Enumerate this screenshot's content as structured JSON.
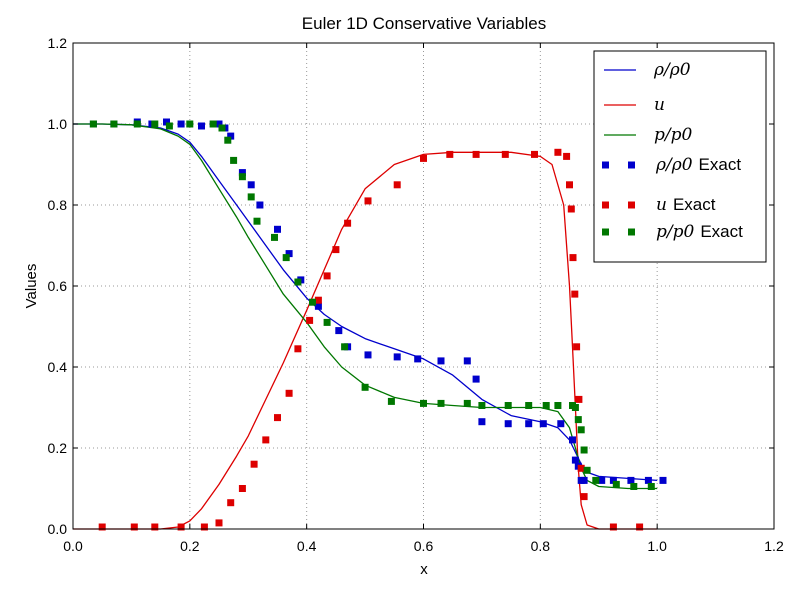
{
  "chart_data": {
    "type": "line",
    "title": "Euler 1D Conservative Variables",
    "xlabel": "x",
    "ylabel": "Values",
    "xlim": [
      0.0,
      1.2
    ],
    "ylim": [
      0.0,
      1.2
    ],
    "xticks": [
      "0.0",
      "0.2",
      "0.4",
      "0.6",
      "0.8",
      "1.0",
      "1.2"
    ],
    "yticks": [
      "0.0",
      "0.2",
      "0.4",
      "0.6",
      "0.8",
      "1.0",
      "1.2"
    ],
    "grid": true,
    "legend_position": "top-right",
    "series": [
      {
        "name": "ρ/ρ0",
        "kind": "line",
        "color": "#0000cc",
        "x": [
          0.0,
          0.05,
          0.1,
          0.15,
          0.18,
          0.2,
          0.22,
          0.25,
          0.28,
          0.3,
          0.33,
          0.36,
          0.4,
          0.43,
          0.46,
          0.5,
          0.55,
          0.6,
          0.65,
          0.7,
          0.75,
          0.8,
          0.83,
          0.85,
          0.86,
          0.87,
          0.88,
          0.9,
          0.95,
          1.0
        ],
        "y": [
          1.0,
          1.0,
          0.998,
          0.99,
          0.975,
          0.955,
          0.92,
          0.86,
          0.8,
          0.76,
          0.7,
          0.64,
          0.57,
          0.53,
          0.5,
          0.47,
          0.445,
          0.42,
          0.38,
          0.32,
          0.28,
          0.265,
          0.25,
          0.22,
          0.19,
          0.16,
          0.14,
          0.13,
          0.125,
          0.12
        ]
      },
      {
        "name": "u",
        "kind": "line",
        "color": "#dd0000",
        "x": [
          0.0,
          0.1,
          0.15,
          0.18,
          0.2,
          0.22,
          0.25,
          0.28,
          0.3,
          0.33,
          0.36,
          0.4,
          0.43,
          0.46,
          0.5,
          0.55,
          0.6,
          0.65,
          0.7,
          0.75,
          0.8,
          0.82,
          0.84,
          0.85,
          0.855,
          0.86,
          0.865,
          0.87,
          0.88,
          0.9,
          0.95,
          1.0
        ],
        "y": [
          0.0,
          0.0,
          0.0,
          0.005,
          0.02,
          0.05,
          0.11,
          0.18,
          0.23,
          0.32,
          0.41,
          0.54,
          0.64,
          0.74,
          0.84,
          0.9,
          0.925,
          0.93,
          0.93,
          0.93,
          0.92,
          0.9,
          0.8,
          0.6,
          0.45,
          0.3,
          0.15,
          0.06,
          0.01,
          0.0,
          0.0,
          0.0
        ]
      },
      {
        "name": "p/p0",
        "kind": "line",
        "color": "#007700",
        "x": [
          0.0,
          0.05,
          0.1,
          0.15,
          0.18,
          0.2,
          0.22,
          0.25,
          0.28,
          0.3,
          0.33,
          0.36,
          0.4,
          0.43,
          0.46,
          0.5,
          0.55,
          0.6,
          0.65,
          0.7,
          0.75,
          0.8,
          0.83,
          0.85,
          0.86,
          0.87,
          0.88,
          0.9,
          0.95,
          1.0
        ],
        "y": [
          1.0,
          1.0,
          0.998,
          0.988,
          0.97,
          0.95,
          0.91,
          0.84,
          0.77,
          0.72,
          0.65,
          0.58,
          0.51,
          0.45,
          0.4,
          0.355,
          0.325,
          0.31,
          0.305,
          0.3,
          0.3,
          0.3,
          0.29,
          0.25,
          0.2,
          0.15,
          0.12,
          0.105,
          0.1,
          0.1
        ]
      },
      {
        "name": "ρ/ρ0 Exact",
        "kind": "scatter",
        "color": "#0000cc",
        "x": [
          0.035,
          0.07,
          0.11,
          0.135,
          0.16,
          0.185,
          0.22,
          0.24,
          0.25,
          0.26,
          0.27,
          0.29,
          0.305,
          0.32,
          0.35,
          0.37,
          0.39,
          0.42,
          0.455,
          0.47,
          0.505,
          0.555,
          0.59,
          0.63,
          0.675,
          0.69,
          0.7,
          0.745,
          0.78,
          0.805,
          0.835,
          0.855,
          0.86,
          0.865,
          0.87,
          0.875,
          0.905,
          0.925,
          0.955,
          0.985,
          1.01
        ],
        "y": [
          1.0,
          1.0,
          1.005,
          1.0,
          1.005,
          1.0,
          0.995,
          1.0,
          1.0,
          0.99,
          0.97,
          0.88,
          0.85,
          0.8,
          0.74,
          0.68,
          0.615,
          0.55,
          0.49,
          0.45,
          0.43,
          0.425,
          0.42,
          0.415,
          0.415,
          0.37,
          0.265,
          0.26,
          0.26,
          0.26,
          0.26,
          0.22,
          0.17,
          0.155,
          0.12,
          0.12,
          0.12,
          0.12,
          0.12,
          0.12,
          0.12
        ]
      },
      {
        "name": "u Exact",
        "kind": "scatter",
        "color": "#dd0000",
        "x": [
          0.05,
          0.105,
          0.14,
          0.185,
          0.225,
          0.25,
          0.27,
          0.29,
          0.31,
          0.33,
          0.35,
          0.37,
          0.385,
          0.405,
          0.42,
          0.435,
          0.45,
          0.47,
          0.505,
          0.555,
          0.6,
          0.645,
          0.69,
          0.74,
          0.79,
          0.83,
          0.845,
          0.85,
          0.853,
          0.856,
          0.859,
          0.862,
          0.866,
          0.87,
          0.875,
          0.925,
          0.97
        ],
        "y": [
          0.005,
          0.005,
          0.005,
          0.005,
          0.005,
          0.015,
          0.065,
          0.1,
          0.16,
          0.22,
          0.275,
          0.335,
          0.445,
          0.515,
          0.565,
          0.625,
          0.69,
          0.755,
          0.81,
          0.85,
          0.915,
          0.925,
          0.925,
          0.925,
          0.925,
          0.93,
          0.92,
          0.85,
          0.79,
          0.67,
          0.58,
          0.45,
          0.32,
          0.15,
          0.08,
          0.005,
          0.005
        ]
      },
      {
        "name": "p/p0 Exact",
        "kind": "scatter",
        "color": "#007700",
        "x": [
          0.035,
          0.07,
          0.11,
          0.14,
          0.165,
          0.2,
          0.24,
          0.255,
          0.265,
          0.275,
          0.29,
          0.305,
          0.315,
          0.345,
          0.365,
          0.385,
          0.41,
          0.435,
          0.465,
          0.5,
          0.545,
          0.6,
          0.63,
          0.675,
          0.7,
          0.745,
          0.78,
          0.81,
          0.83,
          0.855,
          0.86,
          0.865,
          0.87,
          0.875,
          0.88,
          0.895,
          0.93,
          0.96,
          0.99
        ],
        "y": [
          1.0,
          1.0,
          1.0,
          1.0,
          0.995,
          1.0,
          1.0,
          0.99,
          0.96,
          0.91,
          0.87,
          0.82,
          0.76,
          0.72,
          0.67,
          0.61,
          0.56,
          0.51,
          0.45,
          0.35,
          0.315,
          0.31,
          0.31,
          0.31,
          0.305,
          0.305,
          0.305,
          0.305,
          0.305,
          0.305,
          0.3,
          0.27,
          0.245,
          0.195,
          0.145,
          0.12,
          0.11,
          0.105,
          0.105
        ]
      }
    ]
  },
  "legend": {
    "entries": [
      {
        "label": "ρ/ρ0",
        "style": "math",
        "marker": "line",
        "color": "#0000cc"
      },
      {
        "label": "u",
        "style": "math",
        "marker": "line",
        "color": "#dd0000"
      },
      {
        "label": "p/p0",
        "style": "math",
        "marker": "line",
        "color": "#007700"
      },
      {
        "label": "ρ/ρ0",
        "suffix": "Exact",
        "style": "math",
        "marker": "square",
        "color": "#0000cc"
      },
      {
        "label": "u",
        "suffix": "Exact",
        "style": "math",
        "marker": "square",
        "color": "#dd0000"
      },
      {
        "label": "p/p0",
        "suffix": "Exact",
        "style": "math",
        "marker": "square",
        "color": "#007700"
      }
    ]
  }
}
